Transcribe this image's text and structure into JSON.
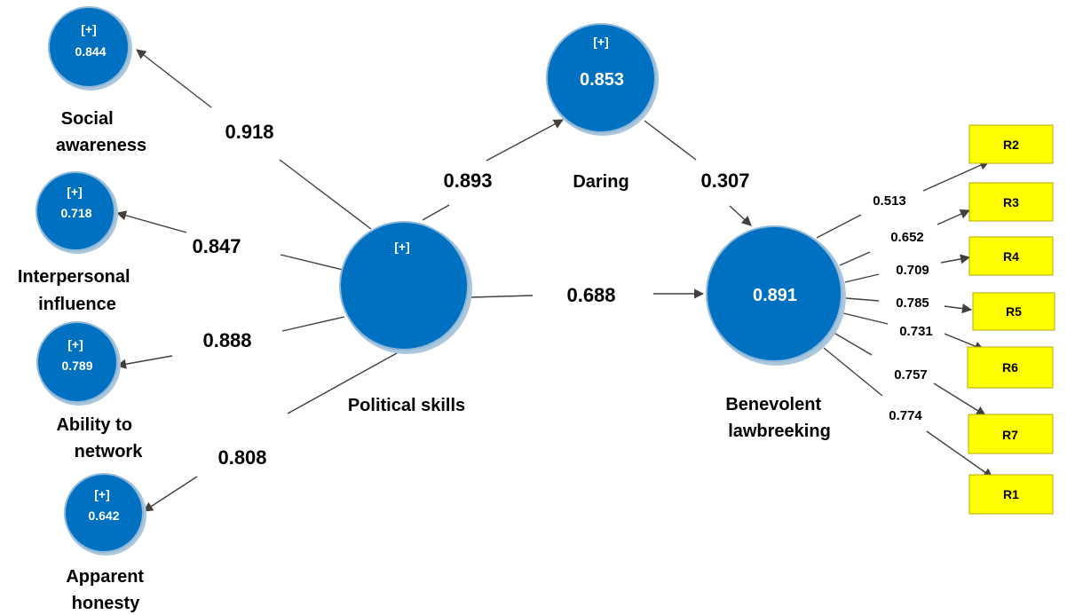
{
  "constructs": {
    "social_awareness": {
      "expand": "[+]",
      "value": "0.844",
      "label_lines": [
        "Social",
        "awareness"
      ]
    },
    "interpersonal_influence": {
      "expand": "[+]",
      "value": "0.718",
      "label_lines": [
        "Interpersonal",
        "influence"
      ]
    },
    "ability_to_network": {
      "expand": "[+]",
      "value": "0.789",
      "label_lines": [
        "Ability to",
        "network"
      ]
    },
    "apparent_honesty": {
      "expand": "[+]",
      "value": "0.642",
      "label_lines": [
        "Apparent",
        "honesty"
      ]
    },
    "political_skills": {
      "expand": "[+]",
      "label": "Political skills"
    },
    "daring": {
      "expand": "[+]",
      "value": "0.853",
      "label": "Daring"
    },
    "benevolent_lawbreeking": {
      "value": "0.891",
      "label_lines": [
        "Benevolent",
        "lawbreeking"
      ]
    }
  },
  "paths": {
    "ps_to_social_awareness": "0.918",
    "ps_to_interpersonal_influence": "0.847",
    "ps_to_ability_to_network": "0.888",
    "ps_to_apparent_honesty": "0.808",
    "ps_to_daring": "0.893",
    "daring_to_bl": "0.307",
    "ps_to_bl": "0.688"
  },
  "indicators": [
    {
      "label": "R2",
      "loading": "0.513"
    },
    {
      "label": "R3",
      "loading": "0.652"
    },
    {
      "label": "R4",
      "loading": "0.709"
    },
    {
      "label": "R5",
      "loading": "0.785"
    },
    {
      "label": "R6",
      "loading": "0.731"
    },
    {
      "label": "R7",
      "loading": "0.757"
    },
    {
      "label": "R1",
      "loading": "0.774"
    }
  ],
  "colors": {
    "construct_fill": "#0070c0",
    "indicator_fill": "#ffff00",
    "edge": "#404040"
  }
}
